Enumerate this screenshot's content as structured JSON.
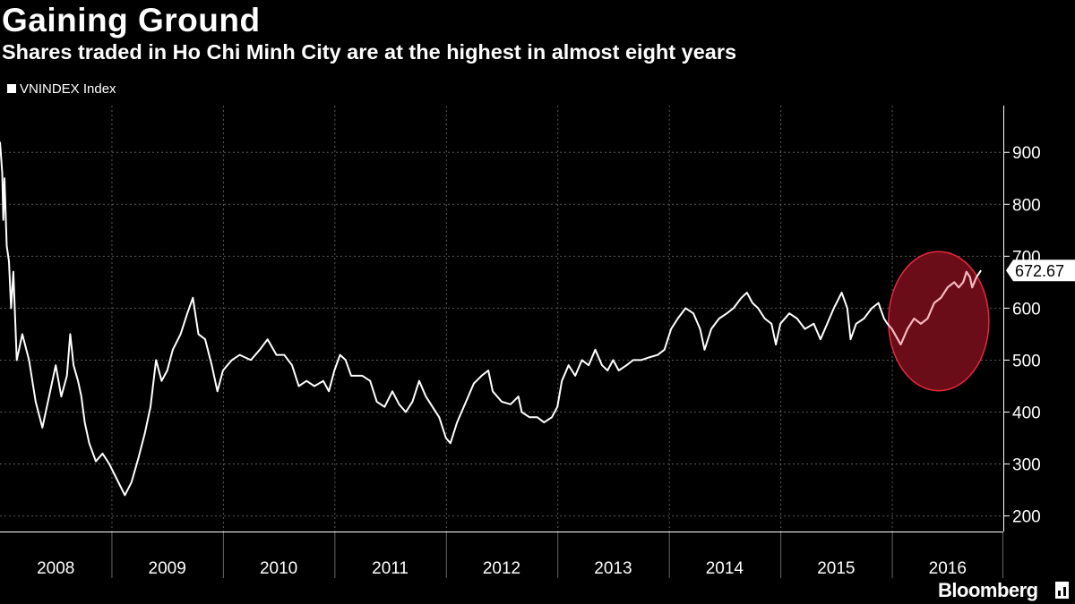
{
  "chart_data": {
    "type": "line",
    "title": "Gaining Ground",
    "subtitle": "Shares traded in Ho Chi Minh City are at the highest in almost eight years",
    "series": [
      {
        "name": "VNINDEX Index",
        "color": "#ffffff",
        "points": [
          [
            2008.0,
            920
          ],
          [
            2008.02,
            860
          ],
          [
            2008.03,
            770
          ],
          [
            2008.04,
            850
          ],
          [
            2008.06,
            720
          ],
          [
            2008.08,
            690
          ],
          [
            2008.1,
            600
          ],
          [
            2008.12,
            670
          ],
          [
            2008.15,
            500
          ],
          [
            2008.2,
            550
          ],
          [
            2008.26,
            500
          ],
          [
            2008.32,
            420
          ],
          [
            2008.38,
            370
          ],
          [
            2008.44,
            430
          ],
          [
            2008.5,
            490
          ],
          [
            2008.55,
            430
          ],
          [
            2008.6,
            470
          ],
          [
            2008.63,
            550
          ],
          [
            2008.66,
            490
          ],
          [
            2008.7,
            460
          ],
          [
            2008.73,
            430
          ],
          [
            2008.76,
            380
          ],
          [
            2008.8,
            340
          ],
          [
            2008.86,
            305
          ],
          [
            2008.92,
            320
          ],
          [
            2008.98,
            300
          ],
          [
            2009.05,
            270
          ],
          [
            2009.12,
            240
          ],
          [
            2009.18,
            265
          ],
          [
            2009.24,
            310
          ],
          [
            2009.3,
            360
          ],
          [
            2009.35,
            410
          ],
          [
            2009.4,
            500
          ],
          [
            2009.45,
            460
          ],
          [
            2009.5,
            480
          ],
          [
            2009.55,
            520
          ],
          [
            2009.62,
            550
          ],
          [
            2009.68,
            590
          ],
          [
            2009.73,
            620
          ],
          [
            2009.78,
            550
          ],
          [
            2009.84,
            540
          ],
          [
            2009.9,
            490
          ],
          [
            2009.95,
            440
          ],
          [
            2010.0,
            480
          ],
          [
            2010.08,
            500
          ],
          [
            2010.15,
            510
          ],
          [
            2010.25,
            500
          ],
          [
            2010.33,
            520
          ],
          [
            2010.4,
            540
          ],
          [
            2010.48,
            510
          ],
          [
            2010.55,
            510
          ],
          [
            2010.62,
            490
          ],
          [
            2010.68,
            450
          ],
          [
            2010.75,
            460
          ],
          [
            2010.82,
            450
          ],
          [
            2010.9,
            460
          ],
          [
            2010.95,
            440
          ],
          [
            2011.0,
            480
          ],
          [
            2011.05,
            510
          ],
          [
            2011.1,
            500
          ],
          [
            2011.15,
            470
          ],
          [
            2011.25,
            470
          ],
          [
            2011.32,
            460
          ],
          [
            2011.38,
            420
          ],
          [
            2011.45,
            410
          ],
          [
            2011.52,
            440
          ],
          [
            2011.58,
            415
          ],
          [
            2011.64,
            400
          ],
          [
            2011.7,
            420
          ],
          [
            2011.76,
            460
          ],
          [
            2011.82,
            430
          ],
          [
            2011.88,
            410
          ],
          [
            2011.94,
            390
          ],
          [
            2012.0,
            350
          ],
          [
            2012.04,
            340
          ],
          [
            2012.1,
            380
          ],
          [
            2012.18,
            420
          ],
          [
            2012.25,
            455
          ],
          [
            2012.32,
            470
          ],
          [
            2012.38,
            480
          ],
          [
            2012.42,
            440
          ],
          [
            2012.5,
            420
          ],
          [
            2012.58,
            415
          ],
          [
            2012.65,
            430
          ],
          [
            2012.68,
            400
          ],
          [
            2012.75,
            390
          ],
          [
            2012.82,
            390
          ],
          [
            2012.88,
            380
          ],
          [
            2012.95,
            390
          ],
          [
            2013.0,
            410
          ],
          [
            2013.04,
            460
          ],
          [
            2013.1,
            490
          ],
          [
            2013.16,
            470
          ],
          [
            2013.22,
            500
          ],
          [
            2013.28,
            490
          ],
          [
            2013.34,
            520
          ],
          [
            2013.4,
            490
          ],
          [
            2013.45,
            480
          ],
          [
            2013.5,
            500
          ],
          [
            2013.55,
            480
          ],
          [
            2013.62,
            490
          ],
          [
            2013.68,
            500
          ],
          [
            2013.75,
            500
          ],
          [
            2013.82,
            505
          ],
          [
            2013.9,
            510
          ],
          [
            2013.96,
            520
          ],
          [
            2014.02,
            560
          ],
          [
            2014.08,
            580
          ],
          [
            2014.15,
            600
          ],
          [
            2014.22,
            590
          ],
          [
            2014.28,
            560
          ],
          [
            2014.32,
            520
          ],
          [
            2014.38,
            560
          ],
          [
            2014.45,
            580
          ],
          [
            2014.52,
            590
          ],
          [
            2014.58,
            600
          ],
          [
            2014.65,
            620
          ],
          [
            2014.7,
            630
          ],
          [
            2014.75,
            610
          ],
          [
            2014.8,
            600
          ],
          [
            2014.86,
            580
          ],
          [
            2014.92,
            570
          ],
          [
            2014.96,
            530
          ],
          [
            2015.0,
            570
          ],
          [
            2015.08,
            590
          ],
          [
            2015.15,
            580
          ],
          [
            2015.22,
            560
          ],
          [
            2015.3,
            570
          ],
          [
            2015.36,
            540
          ],
          [
            2015.42,
            570
          ],
          [
            2015.48,
            600
          ],
          [
            2015.55,
            630
          ],
          [
            2015.6,
            600
          ],
          [
            2015.63,
            540
          ],
          [
            2015.68,
            570
          ],
          [
            2015.75,
            580
          ],
          [
            2015.82,
            600
          ],
          [
            2015.88,
            610
          ],
          [
            2015.93,
            580
          ],
          [
            2015.96,
            570
          ],
          [
            2016.0,
            560
          ],
          [
            2016.04,
            545
          ],
          [
            2016.08,
            530
          ],
          [
            2016.14,
            560
          ],
          [
            2016.2,
            580
          ],
          [
            2016.26,
            570
          ],
          [
            2016.32,
            580
          ],
          [
            2016.38,
            610
          ],
          [
            2016.44,
            620
          ],
          [
            2016.5,
            640
          ],
          [
            2016.56,
            650
          ],
          [
            2016.6,
            640
          ],
          [
            2016.64,
            650
          ],
          [
            2016.67,
            670
          ],
          [
            2016.7,
            660
          ],
          [
            2016.72,
            640
          ],
          [
            2016.76,
            660
          ],
          [
            2016.8,
            672.67
          ]
        ]
      }
    ],
    "last_value_label": "672.67",
    "xlabel": "",
    "ylabel": "",
    "xlim": [
      2008,
      2017
    ],
    "ylim": [
      170,
      990
    ],
    "x_ticks": [
      "2008",
      "2009",
      "2010",
      "2011",
      "2012",
      "2013",
      "2014",
      "2015",
      "2016"
    ],
    "y_ticks": [
      200,
      300,
      400,
      500,
      600,
      700,
      800,
      900
    ],
    "grid": true,
    "legend": "top-left",
    "highlight": {
      "type": "ellipse",
      "center_x": 2016.42,
      "center_y": 575,
      "radius_x": 0.45,
      "radius_y": 134,
      "fill": "#6b0d18",
      "stroke": "#e8283c"
    },
    "colors": {
      "background": "#000000",
      "line": "#ffffff",
      "highlight_line": "#f7b6bd",
      "grid": "#5a5a5a"
    }
  },
  "brand": "Bloomberg"
}
